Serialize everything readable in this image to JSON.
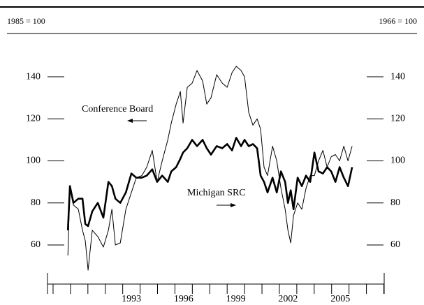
{
  "chart_data": {
    "type": "line",
    "ylabel": "1985 = 100",
    "y2label": "1966 = 100",
    "annotations": [
      "Conference Board",
      "Michigan SRC"
    ],
    "x": [
      1989.85,
      1989.97,
      1990.17,
      1990.45,
      1990.69,
      1990.85,
      1991.01,
      1991.25,
      1991.57,
      1991.89,
      1992.18,
      1992.38,
      1992.58,
      1992.86,
      1993.18,
      1993.5,
      1993.78,
      1994.1,
      1994.38,
      1994.7,
      1994.98,
      1995.27,
      1995.59,
      1995.79,
      1996.07,
      1996.31,
      1996.47,
      1996.71,
      1996.99,
      1997.27,
      1997.59,
      1997.83,
      1998.07,
      1998.4,
      1998.72,
      1999.0,
      1999.28,
      1999.52,
      1999.8,
      2000.0,
      2000.24,
      2000.48,
      2000.72,
      2000.92,
      2001.12,
      2001.32,
      2001.61,
      2001.85,
      2002.09,
      2002.33,
      2002.49,
      2002.65,
      2002.81,
      2003.05,
      2003.29,
      2003.53,
      2003.77,
      2004.01,
      2004.25,
      2004.5,
      2004.74,
      2004.98,
      2005.22,
      2005.46,
      2005.7,
      2005.94,
      2006.18
    ],
    "series": [
      {
        "name": "Conference Board",
        "color": "#000000",
        "linewidth": 1,
        "values": [
          55,
          88,
          79,
          77,
          67,
          62,
          48,
          67,
          64,
          59,
          67,
          77,
          60,
          61,
          77,
          85,
          92,
          93,
          97,
          105,
          90,
          100,
          110,
          118,
          127,
          133,
          118,
          135,
          137,
          143,
          138,
          127,
          130,
          141,
          137,
          135,
          142,
          145,
          143,
          140,
          123,
          117,
          120,
          115,
          97,
          93,
          107,
          100,
          87,
          77,
          67,
          61,
          74,
          80,
          77,
          87,
          93,
          93,
          100,
          105,
          97,
          102,
          103,
          100,
          107,
          100,
          107
        ]
      },
      {
        "name": "Michigan SRC",
        "color": "#000000",
        "linewidth": 2.6,
        "values": [
          67,
          88,
          80,
          82,
          82,
          70,
          69,
          76,
          80,
          73,
          90,
          88,
          82,
          80,
          85,
          94,
          92,
          92,
          93,
          96,
          90,
          93,
          90,
          95,
          97,
          101,
          104,
          106,
          110,
          107,
          110,
          106,
          103,
          107,
          106,
          108,
          105,
          111,
          107,
          110,
          107,
          108,
          106,
          93,
          90,
          85,
          92,
          85,
          95,
          90,
          80,
          86,
          77,
          92,
          88,
          93,
          90,
          104,
          95,
          94,
          97,
          95,
          90,
          97,
          92,
          88,
          97
        ]
      }
    ],
    "xlim": [
      1988.68,
      2008.02
    ],
    "xticks": [
      {
        "value": 1993.5,
        "label": "1993"
      },
      {
        "value": 1996.5,
        "label": "1996"
      },
      {
        "value": 1999.5,
        "label": "1999"
      },
      {
        "value": 2002.5,
        "label": "2002"
      },
      {
        "value": 2005.5,
        "label": "2005"
      }
    ],
    "xminor_ticks": [
      1989,
      1990,
      1991,
      1992,
      1993,
      1994,
      1995,
      1996,
      1997,
      1998,
      1999,
      2000,
      2001,
      2002,
      2003,
      2004,
      2005,
      2006,
      2007,
      2008
    ],
    "ylim": [
      41.4,
      160.6
    ],
    "yticks": [
      60,
      80,
      100,
      120,
      140
    ],
    "y2lim": [
      41.4,
      160.6
    ],
    "y2ticks": [
      60,
      80,
      100,
      120,
      140
    ],
    "grid": false
  }
}
